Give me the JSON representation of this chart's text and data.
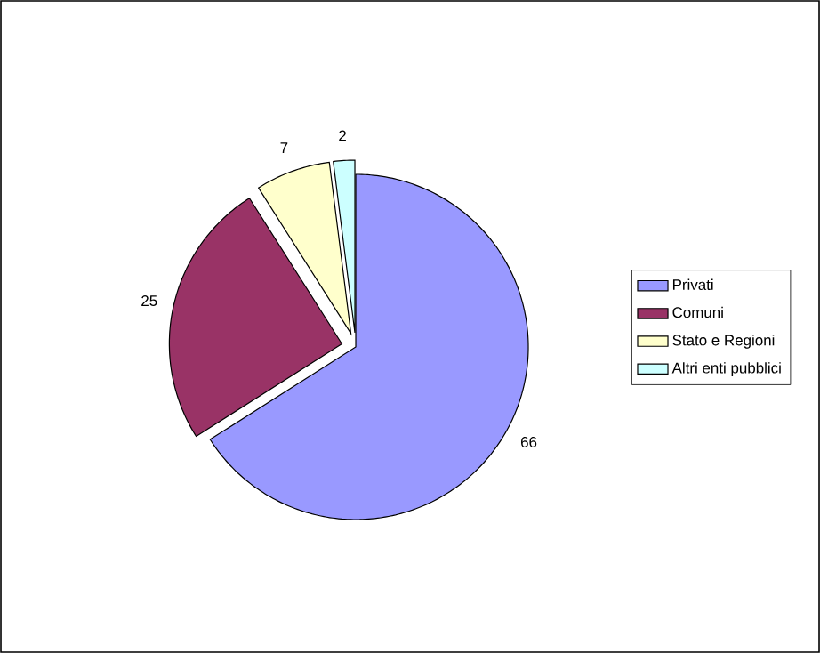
{
  "chart_data": {
    "type": "pie",
    "categories": [
      "Privati",
      "Comuni",
      "Stato e Regioni",
      "Altri enti pubblici"
    ],
    "values": [
      66,
      25,
      7,
      2
    ],
    "colors": [
      "#9999ff",
      "#993366",
      "#ffffcc",
      "#ccffff"
    ],
    "data_labels": true,
    "legend": "right"
  }
}
